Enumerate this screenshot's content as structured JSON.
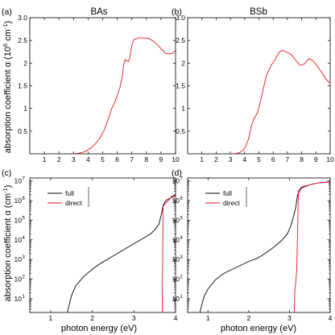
{
  "chart_data": [
    {
      "type": "line",
      "panel": "(a)",
      "title": "BAs",
      "xlim": [
        0,
        10
      ],
      "ylim": [
        0,
        3.0
      ],
      "xticks": [
        1,
        2,
        3,
        4,
        5,
        6,
        7,
        8,
        9,
        10
      ],
      "yticks": [
        0.5,
        1,
        1.5,
        2,
        2.5,
        3
      ],
      "ytick_labels": [
        "0.5",
        "1",
        "1.5",
        "2",
        "2.5",
        "3.0"
      ],
      "log_y": false,
      "series": [
        {
          "color": "#e8161b",
          "x": [
            3.0,
            3.3,
            3.6,
            3.9,
            4.2,
            4.5,
            4.8,
            5.1,
            5.4,
            5.6,
            5.8,
            6.0,
            6.2,
            6.35,
            6.45,
            6.55,
            6.65,
            6.75,
            6.85,
            6.95,
            7.05,
            7.15,
            7.3,
            7.5,
            7.8,
            8.1,
            8.4,
            8.7,
            9.0,
            9.3,
            9.6,
            9.8,
            10.0
          ],
          "y": [
            0.0,
            0.01,
            0.03,
            0.07,
            0.13,
            0.22,
            0.34,
            0.52,
            0.78,
            0.98,
            1.12,
            1.28,
            1.48,
            1.72,
            1.98,
            2.08,
            2.05,
            2.03,
            2.1,
            2.3,
            2.45,
            2.52,
            2.53,
            2.56,
            2.55,
            2.55,
            2.5,
            2.42,
            2.32,
            2.22,
            2.2,
            2.22,
            2.28
          ]
        }
      ]
    },
    {
      "type": "line",
      "panel": "(b)",
      "title": "BSb",
      "xlim": [
        0,
        10
      ],
      "ylim": [
        0,
        3.0
      ],
      "xticks": [
        1,
        2,
        3,
        4,
        5,
        6,
        7,
        8,
        9,
        10
      ],
      "yticks": [
        0.5,
        1,
        1.5,
        2,
        2.5,
        3
      ],
      "ytick_labels": [
        "0.5",
        "1",
        "1.5",
        "2",
        "2.5",
        "3.0"
      ],
      "log_y": false,
      "series": [
        {
          "color": "#e8161b",
          "x": [
            3.0,
            3.3,
            3.6,
            3.9,
            4.1,
            4.3,
            4.5,
            4.7,
            4.9,
            5.1,
            5.3,
            5.5,
            5.7,
            5.9,
            6.1,
            6.3,
            6.5,
            6.7,
            6.9,
            7.1,
            7.3,
            7.6,
            7.9,
            8.2,
            8.5,
            8.8,
            9.1,
            9.4,
            9.7,
            10.0
          ],
          "y": [
            0.0,
            0.0,
            0.02,
            0.08,
            0.18,
            0.35,
            0.65,
            0.8,
            0.9,
            1.15,
            1.42,
            1.7,
            1.85,
            1.97,
            2.05,
            2.18,
            2.26,
            2.28,
            2.25,
            2.22,
            2.18,
            2.05,
            1.95,
            1.98,
            2.1,
            2.05,
            1.93,
            1.8,
            1.65,
            1.55
          ]
        }
      ]
    },
    {
      "type": "line",
      "panel": "(c)",
      "xlim": [
        0.5,
        4.0
      ],
      "xticks": [
        1,
        2,
        3,
        4
      ],
      "log_y": true,
      "ylim_log10": [
        0.3,
        7.15
      ],
      "yticks_log10": [
        1,
        2,
        3,
        4,
        5,
        6,
        7
      ],
      "yticks_labels": [
        [
          "10",
          "1"
        ],
        [
          "10",
          "2"
        ],
        [
          "10",
          "3"
        ],
        [
          "10",
          "4"
        ],
        [
          "10",
          "5"
        ],
        [
          "10",
          "6"
        ],
        [
          "10",
          "7"
        ]
      ],
      "legend": {
        "entries": [
          "full",
          "direct"
        ],
        "placement": "top-left"
      },
      "series": [
        {
          "name": "full",
          "color": "#000000",
          "x": [
            1.4,
            1.5,
            1.6,
            1.8,
            2.0,
            2.2,
            2.4,
            2.6,
            2.8,
            3.0,
            3.2,
            3.4,
            3.5,
            3.6,
            3.65,
            3.7,
            3.75,
            3.8,
            3.9,
            4.0
          ],
          "log10_y": [
            0.3,
            1.15,
            1.65,
            2.15,
            2.5,
            2.8,
            3.05,
            3.3,
            3.55,
            3.8,
            4.05,
            4.3,
            4.5,
            4.8,
            5.2,
            5.75,
            5.95,
            6.05,
            6.15,
            6.25
          ]
        },
        {
          "name": "direct",
          "color": "#e8161b",
          "x": [
            3.68,
            3.69,
            3.7,
            3.75,
            3.8,
            3.85,
            3.9,
            3.95,
            4.0
          ],
          "log10_y": [
            0.3,
            3.0,
            5.7,
            5.85,
            5.95,
            6.05,
            6.2,
            6.25,
            6.3
          ]
        }
      ]
    },
    {
      "type": "line",
      "panel": "(d)",
      "xlim": [
        0.5,
        4.0
      ],
      "xticks": [
        1,
        2,
        3,
        4
      ],
      "log_y": true,
      "ylim_log10": [
        0.3,
        7.15
      ],
      "yticks_log10": [
        1,
        2,
        3,
        4,
        5,
        6,
        7
      ],
      "yticks_labels": [
        [
          "10",
          "1"
        ],
        [
          "10",
          "2"
        ],
        [
          "10",
          "3"
        ],
        [
          "10",
          "4"
        ],
        [
          "10",
          "5"
        ],
        [
          "10",
          "6"
        ],
        [
          "10",
          "7"
        ]
      ],
      "legend": {
        "entries": [
          "full",
          "direct"
        ],
        "placement": "top-left"
      },
      "series": [
        {
          "name": "full",
          "color": "#000000",
          "x": [
            0.8,
            0.9,
            1.0,
            1.2,
            1.4,
            1.6,
            1.8,
            2.0,
            2.2,
            2.4,
            2.6,
            2.8,
            2.95,
            3.05,
            3.1,
            3.15,
            3.2,
            3.3,
            3.5,
            3.7,
            4.0
          ],
          "log10_y": [
            0.3,
            1.1,
            1.5,
            2.0,
            2.3,
            2.5,
            2.7,
            2.9,
            3.05,
            3.3,
            3.6,
            3.95,
            4.3,
            4.8,
            5.2,
            5.6,
            6.3,
            6.65,
            6.8,
            6.9,
            6.95
          ]
        },
        {
          "name": "direct",
          "color": "#e8161b",
          "x": [
            3.12,
            3.13,
            3.15,
            3.18,
            3.2,
            3.22,
            3.3,
            3.5,
            3.7,
            4.0
          ],
          "log10_y": [
            0.3,
            1.4,
            1.7,
            2.5,
            4.5,
            6.5,
            6.7,
            6.8,
            6.9,
            6.95
          ]
        }
      ]
    }
  ],
  "labels": {
    "title_a": "BAs",
    "title_b": "BSb",
    "panel_a": "(a)",
    "panel_b": "(b)",
    "panel_c": "(c)",
    "panel_d": "(d)",
    "ylabel_top_main": "absorption coefficient α (10",
    "ylabel_top_exp1": "6",
    "ylabel_top_mid": " cm",
    "ylabel_top_exp2": "-1",
    "ylabel_top_end": ")",
    "ylabel_bottom_main": "absorption coefficient α (cm",
    "ylabel_bottom_exp": "-1",
    "ylabel_bottom_end": ")",
    "xlabel_c": "photon energy (eV)",
    "xlabel_d": "photon energy (eV)"
  }
}
